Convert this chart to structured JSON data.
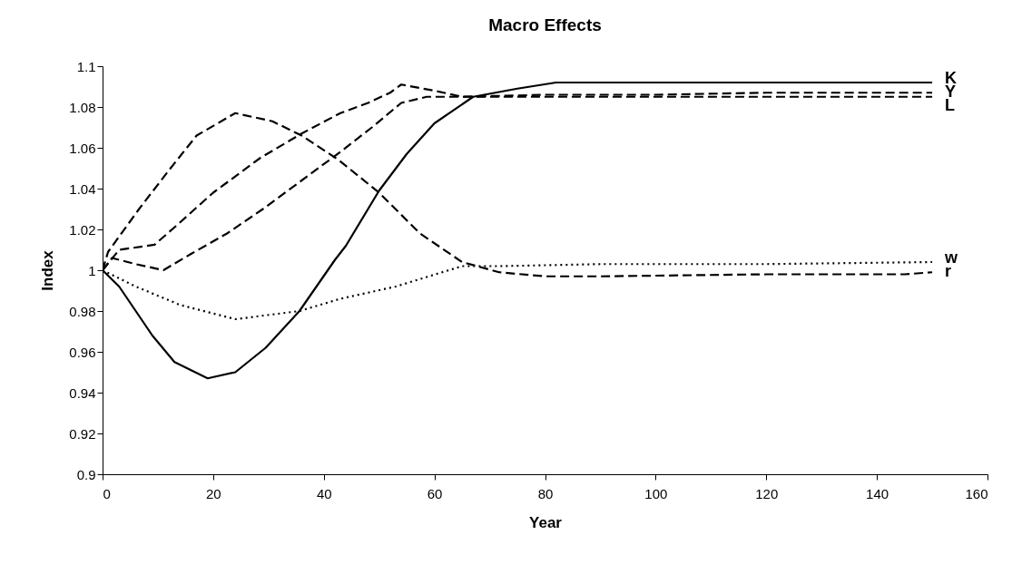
{
  "chart_data": {
    "type": "line",
    "title": "Macro Effects",
    "xlabel": "Year",
    "ylabel": "Index",
    "xlim": [
      0,
      160
    ],
    "xticks": [
      0,
      20,
      40,
      60,
      80,
      100,
      120,
      140,
      160
    ],
    "ylim": [
      0.9,
      1.1
    ],
    "yticks": [
      0.9,
      0.92,
      0.94,
      0.96,
      0.98,
      1,
      1.02,
      1.04,
      1.06,
      1.08,
      1.1
    ],
    "grid": false,
    "series": [
      {
        "name": "K",
        "color": "#000000",
        "line_style": "solid",
        "x": [
          0,
          3,
          9,
          13,
          19,
          24,
          29.5,
          35.6,
          42,
          44,
          50,
          55,
          60,
          67,
          75,
          82,
          105,
          150
        ],
        "values": [
          1,
          0.992,
          0.968,
          0.955,
          0.947,
          0.95,
          0.962,
          0.98,
          1.005,
          1.012,
          1.039,
          1.057,
          1.072,
          1.085,
          1.089,
          1.092,
          1.092,
          1.092
        ]
      },
      {
        "name": "Y",
        "color": "#000000",
        "line_style": "dashed",
        "x": [
          0,
          3,
          9.4,
          13,
          20,
          28.5,
          36,
          43,
          48,
          52,
          54,
          60,
          65,
          80,
          100,
          120,
          150
        ],
        "values": [
          1,
          1.01,
          1.0125,
          1.021,
          1.038,
          1.055,
          1.067,
          1.077,
          1.082,
          1.087,
          1.091,
          1.088,
          1.085,
          1.086,
          1.086,
          1.087,
          1.087
        ]
      },
      {
        "name": "L",
        "color": "#000000",
        "line_style": "dashed",
        "x": [
          0,
          1.7,
          6,
          11,
          16,
          22.5,
          29,
          36,
          43,
          48.7,
          54,
          58.6,
          65,
          80,
          100,
          120,
          150
        ],
        "values": [
          1,
          1.006,
          1.003,
          1.0,
          1.008,
          1.018,
          1.03,
          1.044,
          1.058,
          1.07,
          1.082,
          1.085,
          1.085,
          1.085,
          1.085,
          1.085,
          1.085
        ]
      },
      {
        "name": "w",
        "color": "#000000",
        "line_style": "dotted",
        "x": [
          0,
          6,
          14,
          24,
          35.6,
          43,
          53,
          65,
          72,
          90,
          120,
          150
        ],
        "values": [
          1,
          0.992,
          0.983,
          0.976,
          0.98,
          0.986,
          0.992,
          1.002,
          1.002,
          1.003,
          1.003,
          1.004
        ]
      },
      {
        "name": "r",
        "color": "#000000",
        "line_style": "dashed",
        "x": [
          0,
          1,
          6.6,
          12,
          17,
          24,
          30.7,
          36,
          42.7,
          50,
          57.4,
          65,
          71.7,
          80,
          90,
          120,
          145,
          150
        ],
        "values": [
          1,
          1.009,
          1.03,
          1.049,
          1.066,
          1.077,
          1.073,
          1.066,
          1.054,
          1.038,
          1.018,
          1.004,
          0.999,
          0.997,
          0.997,
          0.998,
          0.998,
          0.999
        ]
      }
    ]
  }
}
